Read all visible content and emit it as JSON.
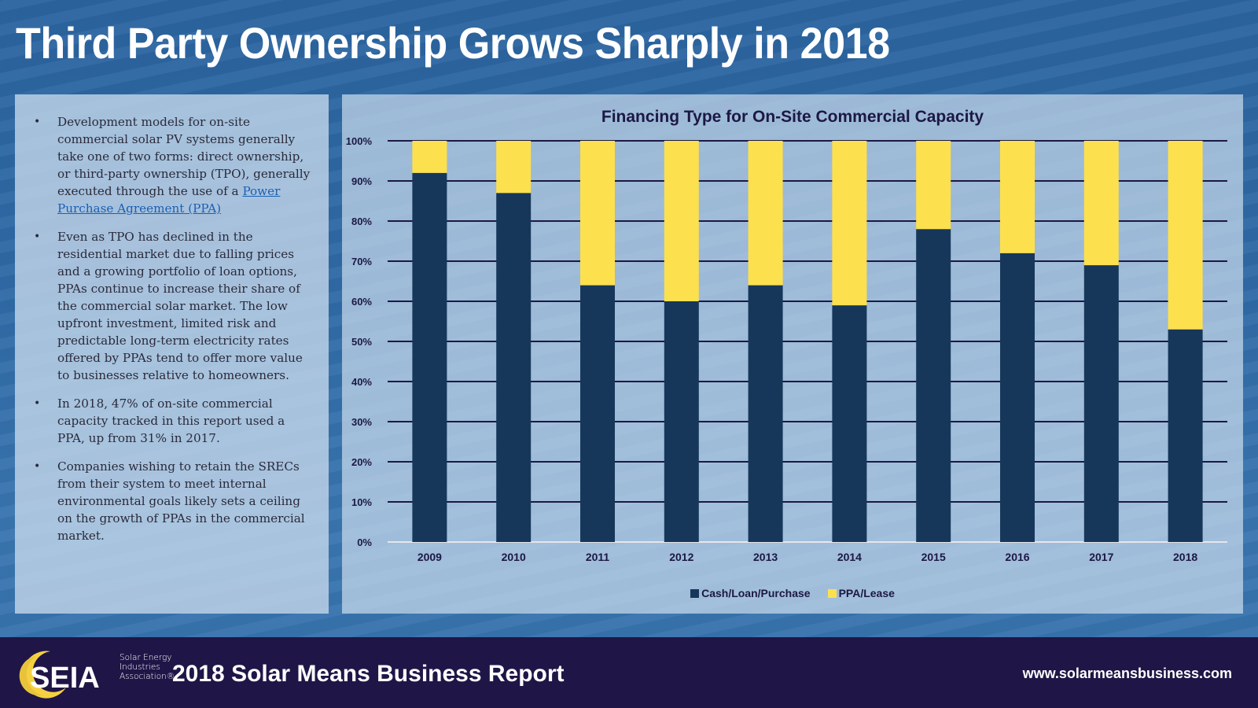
{
  "slide": {
    "title": "Third Party Ownership Grows Sharply in 2018"
  },
  "bullets": [
    {
      "text_before": "Development models for on-site commercial solar PV systems generally take one of two forms: direct ownership, or third-party ownership (TPO), generally executed through the use of a ",
      "link_text": "Power Purchase Agreement (PPA)",
      "text_after": ""
    },
    {
      "text_before": "Even as TPO has declined in the residential market due to falling prices and a growing portfolio of loan options, PPAs continue to increase their share of the commercial solar market. The low upfront investment, limited risk and predictable long-term electricity rates offered by PPAs tend to offer more value to businesses relative to homeowners.",
      "link_text": "",
      "text_after": ""
    },
    {
      "text_before": "In 2018, 47% of on-site commercial capacity tracked in this report used a PPA, up from 31% in 2017.",
      "link_text": "",
      "text_after": ""
    },
    {
      "text_before": "Companies wishing to retain the SRECs from their system to meet internal environmental goals likely sets a ceiling on the growth of PPAs in the commercial market.",
      "link_text": "",
      "text_after": ""
    }
  ],
  "bullet_glyph": "•",
  "chart_data": {
    "type": "bar",
    "stacked": true,
    "title": "Financing Type for On-Site Commercial Capacity",
    "xlabel": "",
    "ylabel": "",
    "categories": [
      "2009",
      "2010",
      "2011",
      "2012",
      "2013",
      "2014",
      "2015",
      "2016",
      "2017",
      "2018"
    ],
    "series": [
      {
        "name": "Cash/Loan/Purchase",
        "color": "#17375a",
        "values": [
          92,
          87,
          64,
          60,
          64,
          59,
          78,
          72,
          69,
          53
        ]
      },
      {
        "name": "PPA/Lease",
        "color": "#fde04e",
        "values": [
          8,
          13,
          36,
          40,
          36,
          41,
          22,
          28,
          31,
          47
        ]
      }
    ],
    "ylim": [
      0,
      100
    ],
    "yticks": [
      0,
      10,
      20,
      30,
      40,
      50,
      60,
      70,
      80,
      90,
      100
    ],
    "ytick_labels": [
      "0%",
      "10%",
      "20%",
      "30%",
      "40%",
      "50%",
      "60%",
      "70%",
      "80%",
      "90%",
      "100%"
    ],
    "grid": true,
    "legend_position": "bottom-center"
  },
  "footer": {
    "logo_abbr": "SEIA",
    "logo_lines": [
      "Solar Energy",
      "Industries",
      "Association®"
    ],
    "report_title": "2018 Solar Means Business Report",
    "website": "www.solarmeansbusiness.com"
  },
  "colors": {
    "background_blue": "#2f6aa6",
    "footer_navy": "#1f1647",
    "bar_dark": "#17375a",
    "bar_yellow": "#fde04e",
    "grid_line": "#1c1845",
    "link_blue": "#1a5fb4"
  }
}
